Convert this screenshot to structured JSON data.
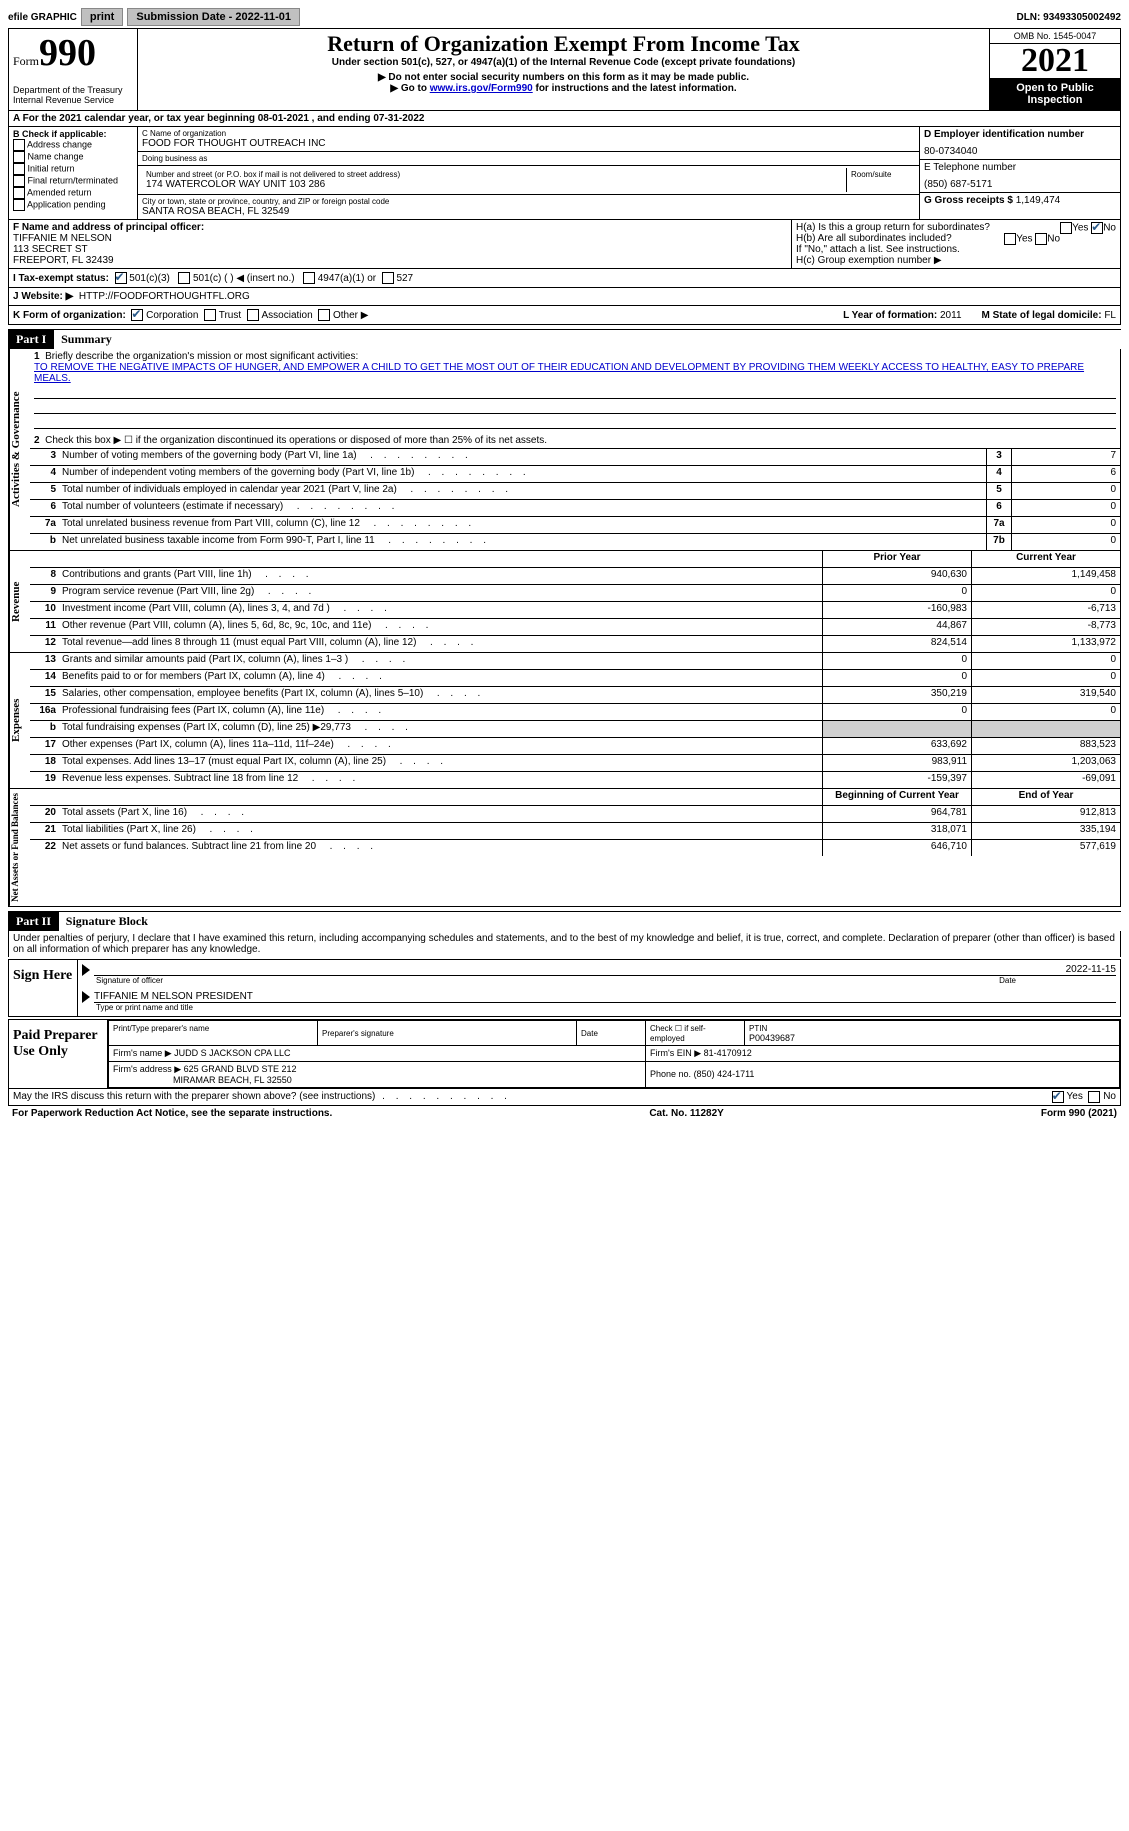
{
  "topbar": {
    "efile_label": "efile GRAPHIC",
    "print_btn": "print",
    "submission_label": "Submission Date - 2022-11-01",
    "dln": "DLN: 93493305002492"
  },
  "header": {
    "form_word": "Form",
    "form_num": "990",
    "dept": "Department of the Treasury\nInternal Revenue Service",
    "title": "Return of Organization Exempt From Income Tax",
    "subtitle": "Under section 501(c), 527, or 4947(a)(1) of the Internal Revenue Code (except private foundations)",
    "note1": "▶ Do not enter social security numbers on this form as it may be made public.",
    "note2_pre": "▶ Go to ",
    "note2_link": "www.irs.gov/Form990",
    "note2_post": " for instructions and the latest information.",
    "omb": "OMB No. 1545-0047",
    "year": "2021",
    "open_public": "Open to Public Inspection"
  },
  "row_a": "A For the 2021 calendar year, or tax year beginning 08-01-2021    , and ending 07-31-2022",
  "section_b": {
    "header": "B Check if applicable:",
    "items": [
      "Address change",
      "Name change",
      "Initial return",
      "Final return/terminated",
      "Amended return",
      "Application pending"
    ]
  },
  "section_c": {
    "name_label": "C Name of organization",
    "name": "FOOD FOR THOUGHT OUTREACH INC",
    "dba_label": "Doing business as",
    "dba": "",
    "addr_label": "Number and street (or P.O. box if mail is not delivered to street address)",
    "room_label": "Room/suite",
    "addr": "174 WATERCOLOR WAY UNIT 103 286",
    "city_label": "City or town, state or province, country, and ZIP or foreign postal code",
    "city": "SANTA ROSA BEACH, FL  32549"
  },
  "section_d": {
    "label": "D Employer identification number",
    "value": "80-0734040"
  },
  "section_e": {
    "label": "E Telephone number",
    "value": "(850) 687-5171"
  },
  "section_g": {
    "label": "G Gross receipts $",
    "value": "1,149,474"
  },
  "section_f": {
    "label": "F  Name and address of principal officer:",
    "name": "TIFFANIE M NELSON",
    "addr1": "113 SECRET ST",
    "addr2": "FREEPORT, FL  32439"
  },
  "section_h": {
    "ha_label": "H(a)  Is this a group return for subordinates?",
    "hb_label": "H(b)  Are all subordinates included?",
    "hb_note": "If \"No,\" attach a list. See instructions.",
    "hc_label": "H(c)  Group exemption number ▶",
    "yes": "Yes",
    "no": "No"
  },
  "row_i": {
    "label": "I   Tax-exempt status:",
    "opt1": "501(c)(3)",
    "opt2": "501(c) (   ) ◀ (insert no.)",
    "opt3": "4947(a)(1) or",
    "opt4": "527"
  },
  "row_j": {
    "label": "J   Website: ▶",
    "value": "HTTP://FOODFORTHOUGHTFL.ORG"
  },
  "row_k": {
    "label": "K Form of organization:",
    "opts": [
      "Corporation",
      "Trust",
      "Association",
      "Other ▶"
    ],
    "l_label": "L Year of formation:",
    "l_value": "2011",
    "m_label": "M State of legal domicile:",
    "m_value": "FL"
  },
  "part1": {
    "header": "Part I",
    "title": "Summary",
    "line1_label": "Briefly describe the organization's mission or most significant activities:",
    "line1_text": "TO REMOVE THE NEGATIVE IMPACTS OF HUNGER, AND EMPOWER A CHILD TO GET THE MOST OUT OF THEIR EDUCATION AND DEVELOPMENT BY PROVIDING THEM WEEKLY ACCESS TO HEALTHY, EASY TO PREPARE MEALS.",
    "line2_label": "Check this box ▶ ☐  if the organization discontinued its operations or disposed of more than 25% of its net assets.",
    "side_label_1": "Activities & Governance",
    "side_label_2": "Revenue",
    "side_label_3": "Expenses",
    "side_label_4": "Net Assets or Fund Balances",
    "lines_gov": [
      {
        "num": "3",
        "label": "Number of voting members of the governing body (Part VI, line 1a)",
        "box": "3",
        "val": "7"
      },
      {
        "num": "4",
        "label": "Number of independent voting members of the governing body (Part VI, line 1b)",
        "box": "4",
        "val": "6"
      },
      {
        "num": "5",
        "label": "Total number of individuals employed in calendar year 2021 (Part V, line 2a)",
        "box": "5",
        "val": "0"
      },
      {
        "num": "6",
        "label": "Total number of volunteers (estimate if necessary)",
        "box": "6",
        "val": "0"
      },
      {
        "num": "7a",
        "label": "Total unrelated business revenue from Part VIII, column (C), line 12",
        "box": "7a",
        "val": "0"
      },
      {
        "num": "b",
        "label": "Net unrelated business taxable income from Form 990-T, Part I, line 11",
        "box": "7b",
        "val": "0"
      }
    ],
    "header_prior": "Prior Year",
    "header_current": "Current Year",
    "lines_rev": [
      {
        "num": "8",
        "label": "Contributions and grants (Part VIII, line 1h)",
        "prior": "940,630",
        "current": "1,149,458"
      },
      {
        "num": "9",
        "label": "Program service revenue (Part VIII, line 2g)",
        "prior": "0",
        "current": "0"
      },
      {
        "num": "10",
        "label": "Investment income (Part VIII, column (A), lines 3, 4, and 7d )",
        "prior": "-160,983",
        "current": "-6,713"
      },
      {
        "num": "11",
        "label": "Other revenue (Part VIII, column (A), lines 5, 6d, 8c, 9c, 10c, and 11e)",
        "prior": "44,867",
        "current": "-8,773"
      },
      {
        "num": "12",
        "label": "Total revenue—add lines 8 through 11 (must equal Part VIII, column (A), line 12)",
        "prior": "824,514",
        "current": "1,133,972"
      }
    ],
    "lines_exp": [
      {
        "num": "13",
        "label": "Grants and similar amounts paid (Part IX, column (A), lines 1–3 )",
        "prior": "0",
        "current": "0"
      },
      {
        "num": "14",
        "label": "Benefits paid to or for members (Part IX, column (A), line 4)",
        "prior": "0",
        "current": "0"
      },
      {
        "num": "15",
        "label": "Salaries, other compensation, employee benefits (Part IX, column (A), lines 5–10)",
        "prior": "350,219",
        "current": "319,540"
      },
      {
        "num": "16a",
        "label": "Professional fundraising fees (Part IX, column (A), line 11e)",
        "prior": "0",
        "current": "0"
      },
      {
        "num": "b",
        "label": "Total fundraising expenses (Part IX, column (D), line 25) ▶29,773",
        "prior": "GRAY",
        "current": "GRAY"
      },
      {
        "num": "17",
        "label": "Other expenses (Part IX, column (A), lines 11a–11d, 11f–24e)",
        "prior": "633,692",
        "current": "883,523"
      },
      {
        "num": "18",
        "label": "Total expenses. Add lines 13–17 (must equal Part IX, column (A), line 25)",
        "prior": "983,911",
        "current": "1,203,063"
      },
      {
        "num": "19",
        "label": "Revenue less expenses. Subtract line 18 from line 12",
        "prior": "-159,397",
        "current": "-69,091"
      }
    ],
    "header_begin": "Beginning of Current Year",
    "header_end": "End of Year",
    "lines_net": [
      {
        "num": "20",
        "label": "Total assets (Part X, line 16)",
        "prior": "964,781",
        "current": "912,813"
      },
      {
        "num": "21",
        "label": "Total liabilities (Part X, line 26)",
        "prior": "318,071",
        "current": "335,194"
      },
      {
        "num": "22",
        "label": "Net assets or fund balances. Subtract line 21 from line 20",
        "prior": "646,710",
        "current": "577,619"
      }
    ]
  },
  "part2": {
    "header": "Part II",
    "title": "Signature Block",
    "penalties": "Under penalties of perjury, I declare that I have examined this return, including accompanying schedules and statements, and to the best of my knowledge and belief, it is true, correct, and complete. Declaration of preparer (other than officer) is based on all information of which preparer has any knowledge.",
    "sign_here": "Sign Here",
    "sig_officer": "Signature of officer",
    "sig_date": "2022-11-15",
    "date_label": "Date",
    "officer_name": "TIFFANIE M NELSON  PRESIDENT",
    "type_name": "Type or print name and title",
    "paid_prep": "Paid Preparer Use Only",
    "prep_name_label": "Print/Type preparer's name",
    "prep_sig_label": "Preparer's signature",
    "prep_date_label": "Date",
    "prep_check": "Check ☐ if self-employed",
    "ptin_label": "PTIN",
    "ptin": "P00439687",
    "firm_name_label": "Firm's name      ▶",
    "firm_name": "JUDD S JACKSON CPA LLC",
    "firm_ein_label": "Firm's EIN ▶",
    "firm_ein": "81-4170912",
    "firm_addr_label": "Firm's address ▶",
    "firm_addr": "625 GRAND BLVD STE 212",
    "firm_city": "MIRAMAR BEACH, FL  32550",
    "phone_label": "Phone no.",
    "phone": "(850) 424-1711",
    "may_irs": "May the IRS discuss this return with the preparer shown above? (see instructions)",
    "yes": "Yes",
    "no": "No"
  },
  "footer": {
    "paperwork": "For Paperwork Reduction Act Notice, see the separate instructions.",
    "cat": "Cat. No. 11282Y",
    "form": "Form 990 (2021)"
  }
}
